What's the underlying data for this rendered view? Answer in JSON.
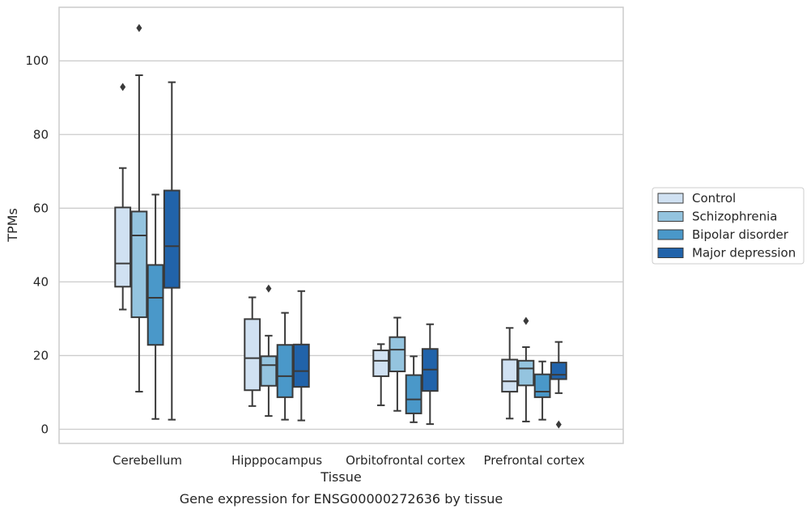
{
  "chart_data": {
    "type": "box",
    "xlabel": "Tissue",
    "ylabel": "TPMs",
    "caption": "Gene expression for ENSG00000272636 by tissue",
    "ylim": [
      -3.5,
      114.5
    ],
    "yticks": [
      0,
      20,
      40,
      60,
      80,
      100
    ],
    "grid": true,
    "legend_position": "right",
    "categories": [
      "Cerebellum",
      "Hipppocampus",
      "Orbitofrontal cortex",
      "Prefrontal cortex"
    ],
    "series": [
      {
        "name": "Control",
        "color": "#d0e1f2",
        "boxes": [
          {
            "whisker_low": 32.5,
            "q1": 38.7,
            "median": 45.0,
            "q3": 60.2,
            "whisker_high": 70.9,
            "outliers": [
              92.9
            ]
          },
          {
            "whisker_low": 6.3,
            "q1": 10.6,
            "median": 19.3,
            "q3": 29.9,
            "whisker_high": 35.8,
            "outliers": []
          },
          {
            "whisker_low": 6.5,
            "q1": 14.4,
            "median": 18.6,
            "q3": 21.4,
            "whisker_high": 23.1,
            "outliers": []
          },
          {
            "whisker_low": 2.9,
            "q1": 10.2,
            "median": 13.0,
            "q3": 18.9,
            "whisker_high": 27.5,
            "outliers": []
          }
        ]
      },
      {
        "name": "Schizophrenia",
        "color": "#94c4df",
        "boxes": [
          {
            "whisker_low": 10.2,
            "q1": 30.4,
            "median": 52.6,
            "q3": 59.1,
            "whisker_high": 96.1,
            "outliers": [
              108.9
            ]
          },
          {
            "whisker_low": 3.6,
            "q1": 11.8,
            "median": 17.4,
            "q3": 19.8,
            "whisker_high": 25.4,
            "outliers": [
              38.2
            ]
          },
          {
            "whisker_low": 5.0,
            "q1": 15.7,
            "median": 21.6,
            "q3": 25.0,
            "whisker_high": 30.3,
            "outliers": []
          },
          {
            "whisker_low": 2.1,
            "q1": 11.9,
            "median": 16.5,
            "q3": 18.6,
            "whisker_high": 22.3,
            "outliers": [
              29.4
            ]
          }
        ]
      },
      {
        "name": "Bipolar disorder",
        "color": "#4a98c9",
        "boxes": [
          {
            "whisker_low": 2.8,
            "q1": 22.9,
            "median": 35.7,
            "q3": 44.6,
            "whisker_high": 63.7,
            "outliers": []
          },
          {
            "whisker_low": 2.6,
            "q1": 8.7,
            "median": 14.4,
            "q3": 22.9,
            "whisker_high": 31.6,
            "outliers": []
          },
          {
            "whisker_low": 1.9,
            "q1": 4.3,
            "median": 8.1,
            "q3": 14.7,
            "whisker_high": 19.8,
            "outliers": []
          },
          {
            "whisker_low": 2.6,
            "q1": 8.7,
            "median": 10.2,
            "q3": 14.9,
            "whisker_high": 18.4,
            "outliers": []
          }
        ]
      },
      {
        "name": "Major depression",
        "color": "#2163aa",
        "boxes": [
          {
            "whisker_low": 2.6,
            "q1": 38.4,
            "median": 49.7,
            "q3": 64.8,
            "whisker_high": 94.2,
            "outliers": []
          },
          {
            "whisker_low": 2.4,
            "q1": 11.5,
            "median": 15.8,
            "q3": 23.0,
            "whisker_high": 37.5,
            "outliers": []
          },
          {
            "whisker_low": 1.4,
            "q1": 10.4,
            "median": 16.2,
            "q3": 21.8,
            "whisker_high": 28.5,
            "outliers": []
          },
          {
            "whisker_low": 9.8,
            "q1": 13.6,
            "median": 14.8,
            "q3": 18.1,
            "whisker_high": 23.7,
            "outliers": [
              1.3
            ]
          }
        ]
      }
    ]
  }
}
